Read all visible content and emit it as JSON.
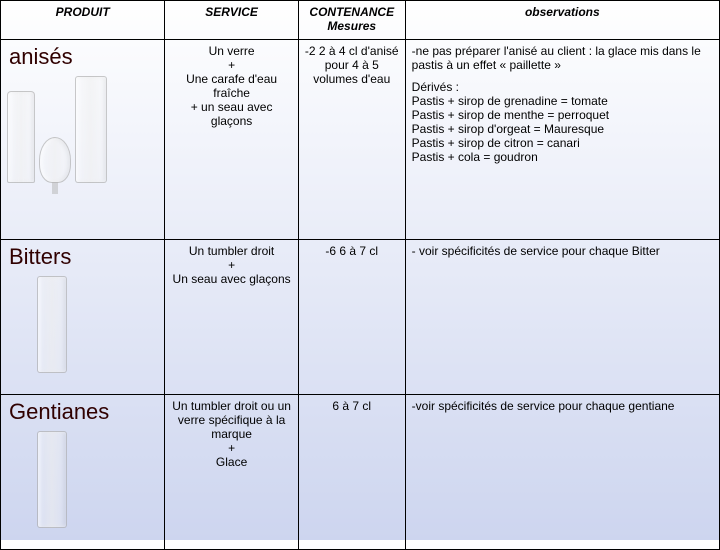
{
  "headers": {
    "produit": "PRODUIT",
    "service": "SERVICE",
    "contenance": "CONTENANCE Mesures",
    "observations": "observations"
  },
  "rows": [
    {
      "produit": "anisés",
      "service": "Un verre\n+\nUne carafe d'eau fraîche\n+ un seau avec glaçons",
      "contenance": "-2 2 à 4 cl d'anisé pour 4 à 5 volumes d'eau",
      "obs_block1": "-ne pas préparer l'anisé au client : la glace mis dans le pastis à un effet « paillette »",
      "obs_block2_title": "Dérivés :",
      "obs_lines": [
        "Pastis + sirop de grenadine = tomate",
        "Pastis + sirop de menthe = perroquet",
        "Pastis + sirop d'orgeat = Mauresque",
        "Pastis + sirop de citron = canari",
        "Pastis + cola = goudron"
      ]
    },
    {
      "produit": "Bitters",
      "service": "Un tumbler droit\n+\nUn seau avec glaçons",
      "contenance": "-6 6 à 7 cl",
      "obs_block1": "- voir spécificités de service pour chaque  Bitter"
    },
    {
      "produit": "Gentianes",
      "service": "Un tumbler droit ou un verre spécifique à la marque\n+\nGlace",
      "contenance": "6 à 7 cl",
      "obs_block1": "-voir spécificités de service pour chaque gentiane"
    }
  ]
}
